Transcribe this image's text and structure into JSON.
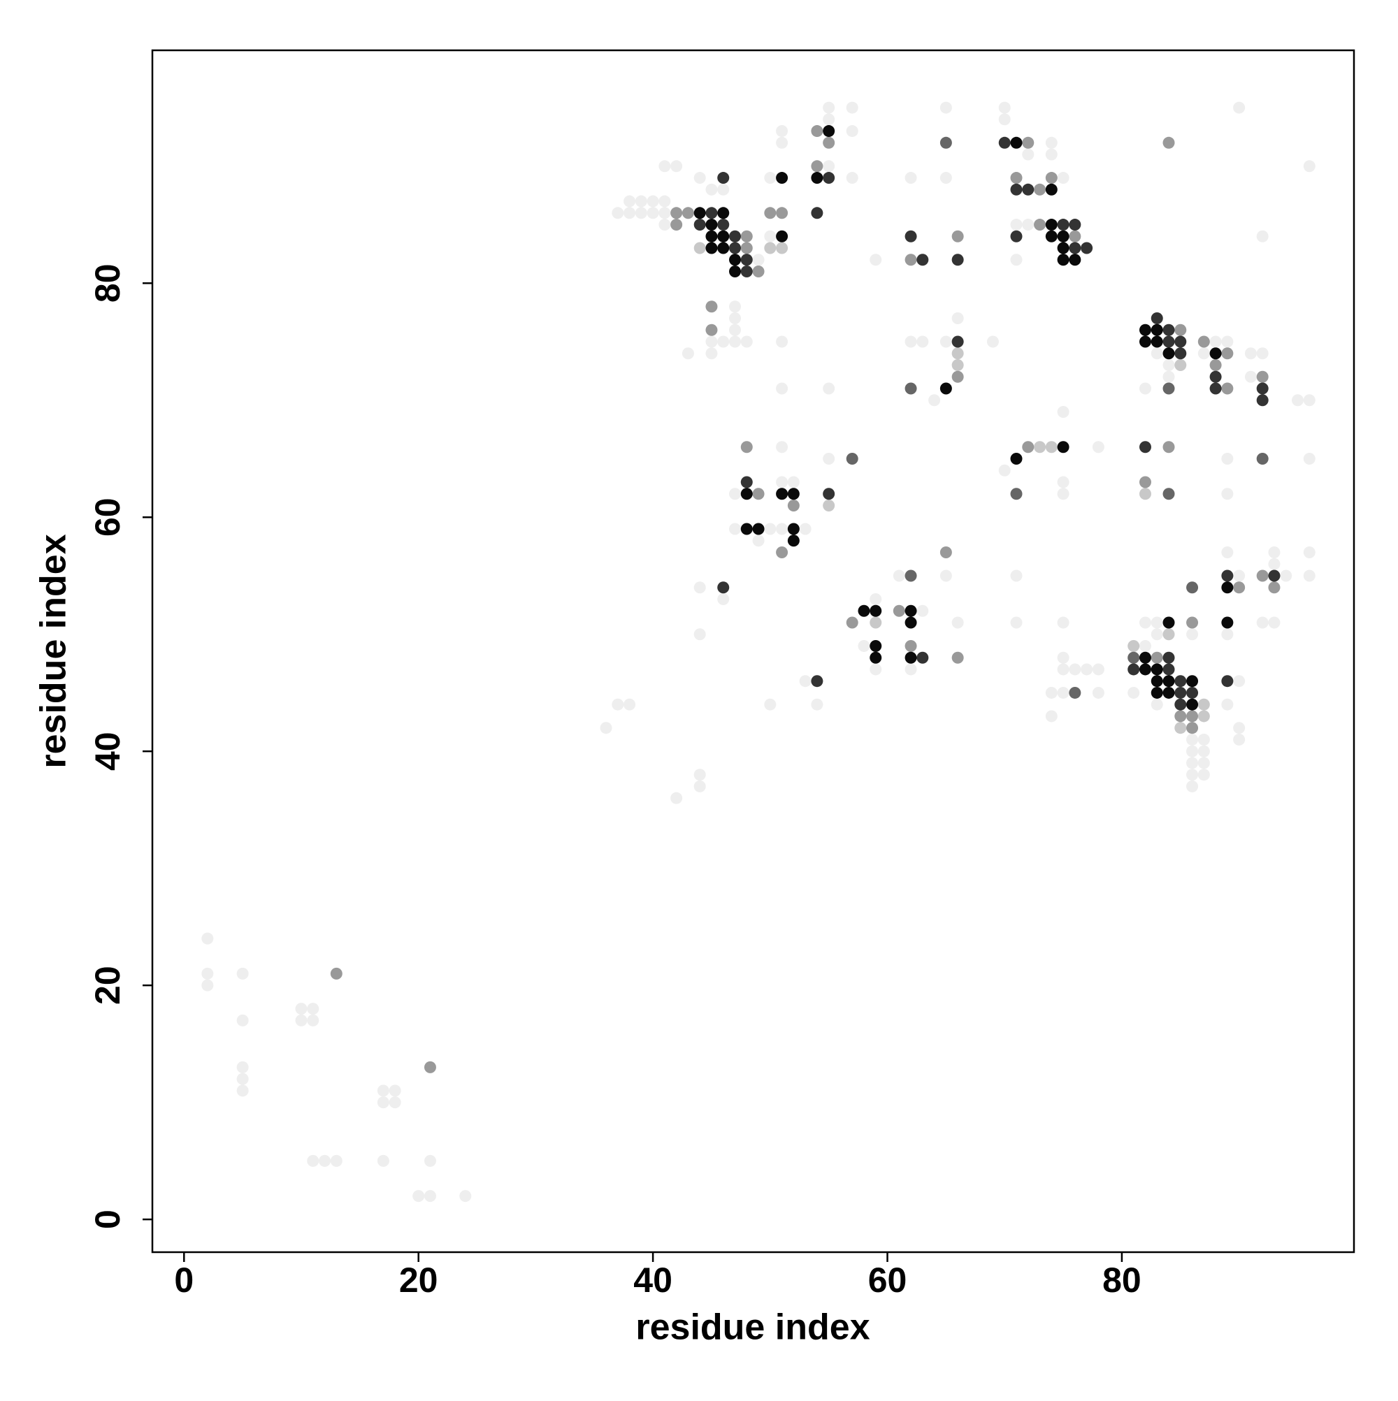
{
  "chart_data": {
    "type": "scatter",
    "xlabel": "residue index",
    "ylabel": "residue index",
    "xlim": [
      -2.7,
      99.8
    ],
    "ylim": [
      -2.8,
      99.9
    ],
    "xticks": [
      0,
      20,
      40,
      60,
      80
    ],
    "yticks": [
      0,
      20,
      40,
      60,
      80
    ],
    "grid": false,
    "series": [
      {
        "color": "#eeeeee",
        "x": [
          2,
          2,
          2,
          5,
          5,
          5,
          5,
          5,
          10,
          10,
          11,
          11,
          11,
          12,
          13,
          17,
          17,
          18,
          18,
          17,
          20,
          21,
          21,
          24,
          36,
          37,
          38,
          42,
          44,
          44,
          44,
          44,
          46,
          37,
          38,
          39,
          40,
          41,
          38,
          39,
          40,
          41,
          41,
          44,
          45,
          46,
          41,
          42,
          49,
          50,
          50,
          51,
          51,
          55,
          55,
          57,
          57,
          55,
          57,
          59,
          62,
          65,
          65,
          70,
          70,
          72,
          74,
          74,
          75,
          71,
          72,
          71,
          90,
          92,
          96,
          45,
          46,
          47,
          47,
          47,
          47,
          48,
          45,
          43,
          51,
          51,
          55,
          62,
          63,
          64,
          65,
          66,
          69,
          83,
          84,
          84,
          82,
          75,
          88,
          89,
          87,
          91,
          92,
          91,
          95,
          96,
          78,
          70,
          75,
          75,
          89,
          89,
          96,
          51,
          55,
          47,
          51,
          52,
          47,
          50,
          51,
          53,
          49,
          59,
          58,
          59,
          61,
          63,
          62,
          65,
          66,
          53,
          54,
          50,
          71,
          71,
          75,
          75,
          75,
          74,
          75,
          76,
          77,
          78,
          78,
          74,
          82,
          82,
          83,
          83,
          86,
          87,
          86,
          87,
          86,
          87,
          86,
          87,
          86,
          81,
          83,
          86,
          89,
          90,
          89,
          90,
          89,
          90,
          90,
          93,
          93,
          92,
          93,
          94,
          96,
          96
        ],
        "y": [
          24,
          21,
          20,
          21,
          17,
          13,
          12,
          11,
          18,
          17,
          18,
          17,
          5,
          5,
          5,
          11,
          10,
          11,
          10,
          5,
          2,
          2,
          5,
          2,
          42,
          44,
          44,
          36,
          38,
          37,
          54,
          50,
          53,
          86,
          86,
          86,
          86,
          86,
          87,
          87,
          87,
          87,
          85,
          89,
          88,
          88,
          90,
          90,
          82,
          84,
          89,
          92,
          93,
          94,
          95,
          95,
          93,
          90,
          89,
          82,
          89,
          95,
          89,
          95,
          94,
          91,
          92,
          91,
          89,
          85,
          85,
          82,
          95,
          84,
          90,
          75,
          75,
          78,
          77,
          76,
          75,
          75,
          74,
          74,
          75,
          71,
          71,
          75,
          75,
          70,
          75,
          77,
          75,
          74,
          73,
          72,
          71,
          69,
          75,
          75,
          74,
          74,
          74,
          72,
          70,
          70,
          66,
          64,
          63,
          62,
          65,
          62,
          65,
          66,
          65,
          62,
          63,
          63,
          59,
          59,
          59,
          59,
          58,
          53,
          49,
          47,
          55,
          52,
          47,
          55,
          51,
          46,
          44,
          44,
          55,
          51,
          51,
          48,
          47,
          45,
          45,
          47,
          47,
          47,
          45,
          43,
          49,
          51,
          51,
          50,
          41,
          41,
          40,
          40,
          39,
          39,
          38,
          38,
          37,
          45,
          44,
          50,
          57,
          55,
          50,
          46,
          44,
          42,
          41,
          57,
          56,
          51,
          51,
          55,
          57,
          55
        ]
      },
      {
        "color": "#c8c8c8",
        "x": [
          73,
          74,
          66,
          82,
          55,
          84,
          59,
          81,
          85,
          66,
          44,
          50,
          51,
          87,
          87,
          85
        ],
        "y": [
          66,
          66,
          73,
          62,
          61,
          50,
          51,
          49,
          73,
          74,
          83,
          83,
          83,
          43,
          44,
          42
        ]
      },
      {
        "color": "#999999",
        "x": [
          13,
          21,
          42,
          43,
          42,
          48,
          48,
          49,
          50,
          51,
          54,
          55,
          54,
          62,
          66,
          72,
          71,
          73,
          74,
          73,
          76,
          84,
          45,
          45,
          66,
          85,
          87,
          89,
          88,
          89,
          92,
          72,
          84,
          82,
          48,
          49,
          52,
          51,
          57,
          61,
          62,
          65,
          66,
          83,
          85,
          86,
          86,
          86,
          90,
          92,
          93
        ],
        "y": [
          21,
          13,
          86,
          86,
          85,
          84,
          83,
          81,
          86,
          86,
          93,
          92,
          90,
          82,
          84,
          92,
          89,
          88,
          89,
          85,
          84,
          92,
          78,
          76,
          72,
          76,
          75,
          74,
          73,
          71,
          72,
          66,
          66,
          63,
          66,
          62,
          61,
          57,
          51,
          52,
          49,
          57,
          48,
          48,
          43,
          43,
          42,
          51,
          54,
          55,
          54
        ]
      },
      {
        "color": "#666666",
        "x": [
          62,
          84,
          71,
          84,
          57,
          92,
          76,
          86,
          62,
          81,
          65
        ],
        "y": [
          71,
          71,
          62,
          62,
          65,
          65,
          45,
          54,
          55,
          48,
          92
        ]
      },
      {
        "color": "#333333",
        "x": [
          45,
          44,
          46,
          47,
          47,
          48,
          46,
          55,
          54,
          62,
          63,
          66,
          70,
          71,
          72,
          75,
          76,
          71,
          76,
          77,
          46,
          66,
          83,
          84,
          84,
          85,
          85,
          88,
          88,
          92,
          92,
          82,
          48,
          55,
          63,
          54,
          84,
          81,
          84,
          85,
          85,
          86,
          85,
          89,
          89,
          93,
          48
        ],
        "y": [
          86,
          85,
          85,
          84,
          83,
          82,
          89,
          89,
          86,
          84,
          82,
          82,
          92,
          88,
          88,
          85,
          85,
          84,
          83,
          83,
          54,
          75,
          77,
          76,
          75,
          75,
          74,
          72,
          71,
          71,
          70,
          66,
          63,
          62,
          48,
          46,
          48,
          47,
          47,
          46,
          45,
          45,
          44,
          55,
          46,
          55,
          81
        ]
      },
      {
        "color": "#0a0a0a",
        "x": [
          44,
          46,
          45,
          45,
          46,
          45,
          46,
          47,
          47,
          51,
          51,
          55,
          54,
          71,
          74,
          74,
          74,
          75,
          75,
          75,
          76,
          65,
          82,
          83,
          82,
          83,
          84,
          88,
          71,
          75,
          48,
          51,
          52,
          48,
          49,
          52,
          52,
          58,
          59,
          59,
          59,
          62,
          62,
          62,
          84,
          82,
          82,
          83,
          83,
          84,
          86,
          83,
          84,
          86,
          89,
          89
        ],
        "y": [
          86,
          86,
          85,
          84,
          84,
          83,
          83,
          82,
          81,
          89,
          84,
          93,
          89,
          92,
          88,
          85,
          84,
          84,
          83,
          82,
          82,
          71,
          76,
          76,
          75,
          75,
          74,
          74,
          65,
          66,
          62,
          62,
          62,
          59,
          59,
          59,
          58,
          52,
          52,
          49,
          48,
          52,
          51,
          48,
          51,
          48,
          47,
          47,
          46,
          46,
          46,
          45,
          45,
          44,
          54,
          51
        ]
      }
    ]
  }
}
